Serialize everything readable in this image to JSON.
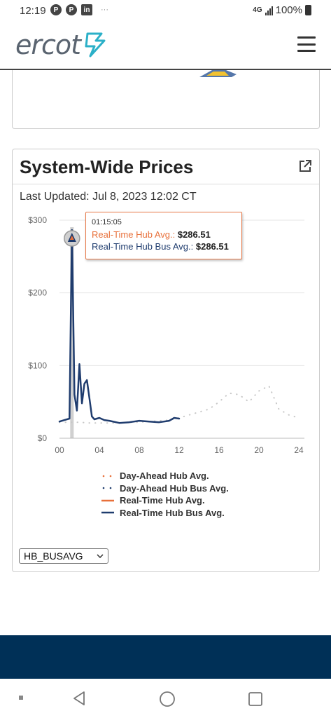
{
  "status_bar": {
    "time": "12:19",
    "network": "4G",
    "battery": "100%"
  },
  "header": {
    "logo_text": "ercot",
    "menu_icon": "hamburger-menu-icon"
  },
  "card": {
    "title": "System-Wide Prices",
    "last_updated": "Last Updated: Jul 8, 2023 12:02 CT",
    "external_link_icon": "external-link-icon"
  },
  "tooltip": {
    "time": "01:15:05",
    "rows": [
      {
        "label": "Real-Time Hub Avg.:",
        "value": "$286.51"
      },
      {
        "label": "Real-Time Hub Bus Avg.:",
        "value": "$286.51"
      }
    ]
  },
  "chart_data": {
    "type": "line",
    "xlabel": "",
    "ylabel": "",
    "xlim": [
      0,
      24
    ],
    "ylim": [
      0,
      300
    ],
    "x_ticks": [
      "00",
      "04",
      "08",
      "12",
      "16",
      "20",
      "24"
    ],
    "y_ticks": [
      "$0",
      "$100",
      "$200",
      "$300"
    ],
    "grid": "horizontal",
    "legend_position": "bottom",
    "series": [
      {
        "name": "Day-Ahead Hub Avg.",
        "style": "dotted",
        "color": "#e8703a",
        "x": [
          0,
          1,
          2,
          3,
          4,
          5,
          6,
          7,
          8,
          9,
          10,
          11,
          12,
          13,
          14,
          15,
          16,
          17,
          18,
          19,
          20,
          21,
          22,
          23,
          24
        ],
        "y": [
          22,
          22,
          22,
          21,
          21,
          21,
          21,
          22,
          22,
          23,
          24,
          25,
          28,
          32,
          36,
          40,
          50,
          62,
          60,
          50,
          65,
          72,
          40,
          32,
          28
        ]
      },
      {
        "name": "Day-Ahead Hub Bus Avg.",
        "style": "dotted",
        "color": "#1f3c6e",
        "x": [
          0,
          1,
          2,
          3,
          4,
          5,
          6,
          7,
          8,
          9,
          10,
          11,
          12,
          13,
          14,
          15,
          16,
          17,
          18,
          19,
          20,
          21,
          22,
          23,
          24
        ],
        "y": [
          22,
          22,
          22,
          21,
          21,
          21,
          21,
          22,
          22,
          23,
          24,
          25,
          28,
          32,
          36,
          40,
          50,
          62,
          60,
          50,
          65,
          72,
          40,
          32,
          28
        ]
      },
      {
        "name": "Real-Time Hub Avg.",
        "style": "solid",
        "color": "#e8703a",
        "x": [
          0,
          0.5,
          1,
          1.25,
          1.5,
          1.75,
          2,
          2.25,
          2.5,
          2.75,
          3,
          3.25,
          3.5,
          4,
          4.5,
          5,
          6,
          7,
          8,
          9,
          10,
          11,
          11.5,
          12
        ],
        "y": [
          23,
          25,
          27,
          286.51,
          60,
          38,
          102,
          48,
          75,
          80,
          55,
          30,
          26,
          28,
          25,
          24,
          21,
          22,
          24,
          23,
          22,
          24,
          28,
          27
        ]
      },
      {
        "name": "Real-Time Hub Bus Avg.",
        "style": "solid",
        "color": "#1f3c6e",
        "x": [
          0,
          0.5,
          1,
          1.25,
          1.5,
          1.75,
          2,
          2.25,
          2.5,
          2.75,
          3,
          3.25,
          3.5,
          4,
          4.5,
          5,
          6,
          7,
          8,
          9,
          10,
          11,
          11.5,
          12
        ],
        "y": [
          23,
          25,
          27,
          286.51,
          60,
          38,
          102,
          48,
          75,
          80,
          55,
          30,
          26,
          28,
          25,
          24,
          21,
          22,
          24,
          23,
          22,
          24,
          28,
          27
        ]
      }
    ]
  },
  "select": {
    "value": "HB_BUSAVG"
  }
}
